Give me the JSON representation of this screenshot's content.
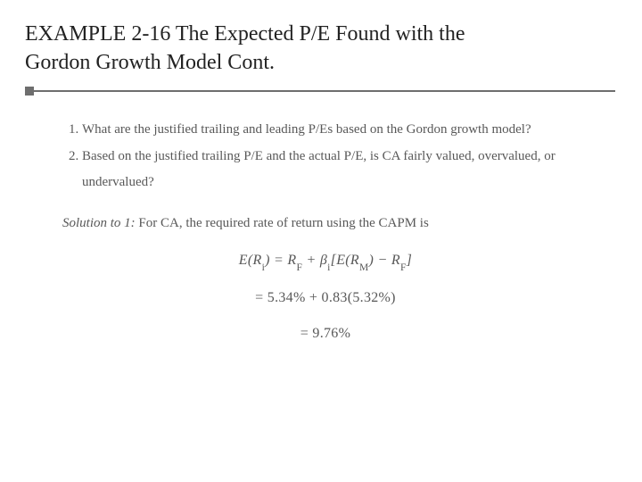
{
  "colors": {
    "title_text": "#222222",
    "rule": "#6e6e6e",
    "rule_square": "#6e6e6e",
    "body_text": "#585858",
    "background": "#ffffff"
  },
  "title": {
    "line1": "EXAMPLE 2-16 The Expected P/E Found with the",
    "line2": "Gordon Growth Model Cont."
  },
  "questions": [
    "What are the justified trailing and leading P/Es based on the Gordon growth model?",
    "Based on the justified trailing P/E and the actual P/E, is CA fairly valued, overvalued, or undervalued?"
  ],
  "solution": {
    "label": "Solution to 1:",
    "text": "For CA, the required rate of return using the CAPM is"
  },
  "equation": {
    "line1_lhs": "E(R",
    "line1_lhs_sub": "i",
    "line1_eq": ") = R",
    "line1_rf_sub": "F",
    "line1_plus": " + β",
    "line1_beta_sub": "i",
    "line1_open": "[E(R",
    "line1_m_sub": "M",
    "line1_mid": ") − R",
    "line1_rf2_sub": "F",
    "line1_close": "]",
    "line2": "= 5.34% + 0.83(5.32%)",
    "line3": "= 9.76%"
  }
}
